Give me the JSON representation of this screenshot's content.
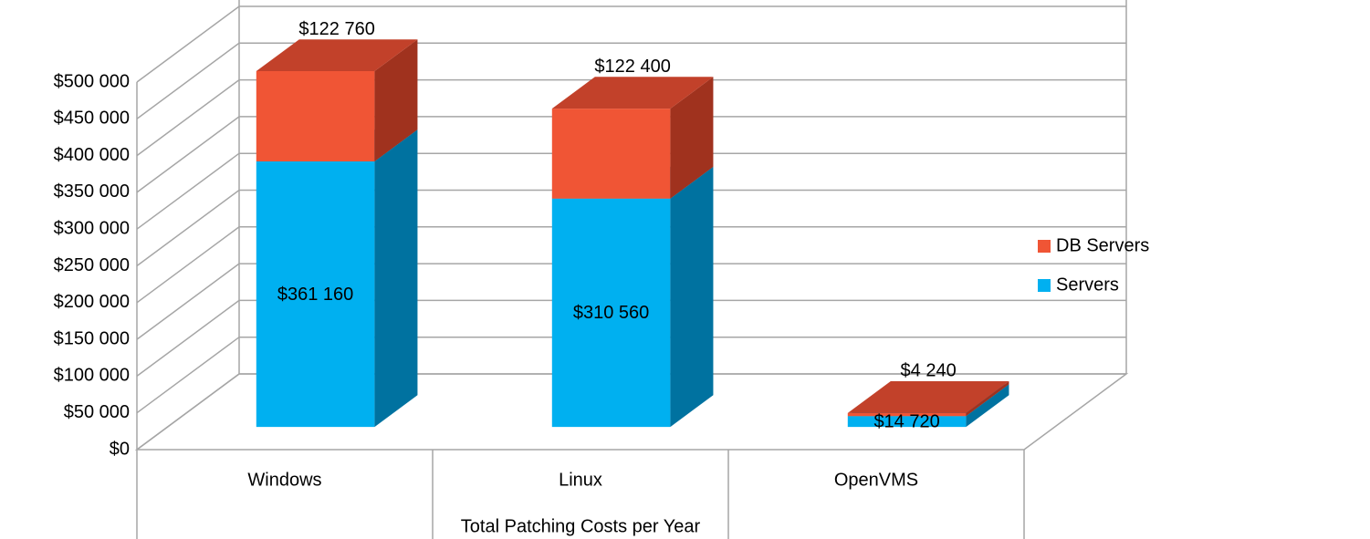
{
  "chart_data": {
    "type": "bar3d_stacked",
    "x_label": "Total Patching Costs per Year",
    "categories": [
      "Windows",
      "Linux",
      "OpenVMS"
    ],
    "series": [
      {
        "name": "Servers",
        "color": "#00b0f0",
        "side_color": "#0072a0",
        "top_color": "#0090c8",
        "values": [
          361160,
          310560,
          14720
        ],
        "value_labels": [
          "$361 160",
          "$310 560",
          "$14 720"
        ]
      },
      {
        "name": "DB Servers",
        "color": "#f05535",
        "side_color": "#a0321e",
        "top_color": "#c2412a",
        "values": [
          122760,
          122400,
          4240
        ],
        "value_labels": [
          "$122 760",
          "$122 400",
          "$4 240"
        ]
      }
    ],
    "ylim": [
      0,
      500000
    ],
    "yticks": [
      {
        "value": 0,
        "label": "$0"
      },
      {
        "value": 50000,
        "label": "$50 000"
      },
      {
        "value": 100000,
        "label": "$100 000"
      },
      {
        "value": 150000,
        "label": "$150 000"
      },
      {
        "value": 200000,
        "label": "$200 000"
      },
      {
        "value": 250000,
        "label": "$250 000"
      },
      {
        "value": 300000,
        "label": "$300 000"
      },
      {
        "value": 350000,
        "label": "$350 000"
      },
      {
        "value": 400000,
        "label": "$400 000"
      },
      {
        "value": 450000,
        "label": "$450 000"
      },
      {
        "value": 500000,
        "label": "$500 000"
      }
    ],
    "grid": true,
    "legend": "right"
  }
}
